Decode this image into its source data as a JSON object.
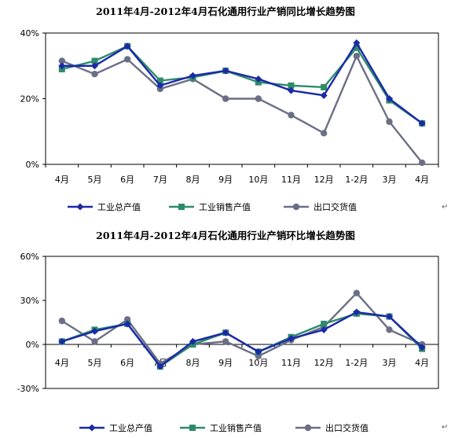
{
  "page": {
    "return_mark": "↵"
  },
  "chart_data": [
    {
      "type": "line",
      "title": "2011年4月-2012年4月石化通用行业产销同比增长趋势图",
      "categories": [
        "4月",
        "5月",
        "6月",
        "7月",
        "8月",
        "9月",
        "10月",
        "11月",
        "12月",
        "1-2月",
        "3月",
        "4月"
      ],
      "ylim": [
        0,
        40
      ],
      "yticks": [
        0,
        20,
        40
      ],
      "ytick_format": "percent",
      "grid": false,
      "legend_position": "bottom",
      "series": [
        {
          "name": "工业总产值",
          "color": "#1a2aa8",
          "marker": "diamond",
          "values": [
            30,
            30,
            36,
            24,
            27,
            28.5,
            26,
            22.5,
            21,
            37,
            20,
            12.5
          ]
        },
        {
          "name": "工业销售产值",
          "color": "#2e8b6a",
          "marker": "square",
          "values": [
            29,
            31.5,
            36,
            25.5,
            26.5,
            28.5,
            25,
            24,
            23.5,
            35.5,
            19.5,
            12.5
          ]
        },
        {
          "name": "出口交货值",
          "color": "#6b6f86",
          "marker": "circle",
          "values": [
            31.5,
            27.5,
            32,
            23,
            26,
            20,
            20,
            15,
            9.5,
            33,
            13,
            0.5
          ]
        }
      ]
    },
    {
      "type": "line",
      "title": "2011年4月-2012年4月石化通用行业产销环比增长趋势图",
      "categories": [
        "4月",
        "5月",
        "6月",
        "7月",
        "8月",
        "9月",
        "10月",
        "11月",
        "12月",
        "1-2月",
        "3月",
        "4月"
      ],
      "ylim": [
        -30,
        60
      ],
      "yticks": [
        -30,
        0,
        30,
        60
      ],
      "ytick_format": "percent",
      "grid": false,
      "legend_position": "bottom",
      "series": [
        {
          "name": "工业总产值",
          "color": "#1a2aa8",
          "marker": "diamond",
          "values": [
            2,
            9,
            14,
            -15,
            2,
            8,
            -5,
            4,
            10,
            22,
            19,
            -2
          ]
        },
        {
          "name": "工业销售产值",
          "color": "#2e8b6a",
          "marker": "square",
          "values": [
            2,
            10,
            14,
            -15,
            0,
            8,
            -5,
            5,
            14,
            21,
            19,
            -3
          ]
        },
        {
          "name": "出口交货值",
          "color": "#6b6f86",
          "marker": "circle",
          "values": [
            16,
            2,
            17,
            -13,
            0,
            2,
            -8,
            3,
            12,
            35,
            10,
            0
          ]
        }
      ]
    }
  ]
}
